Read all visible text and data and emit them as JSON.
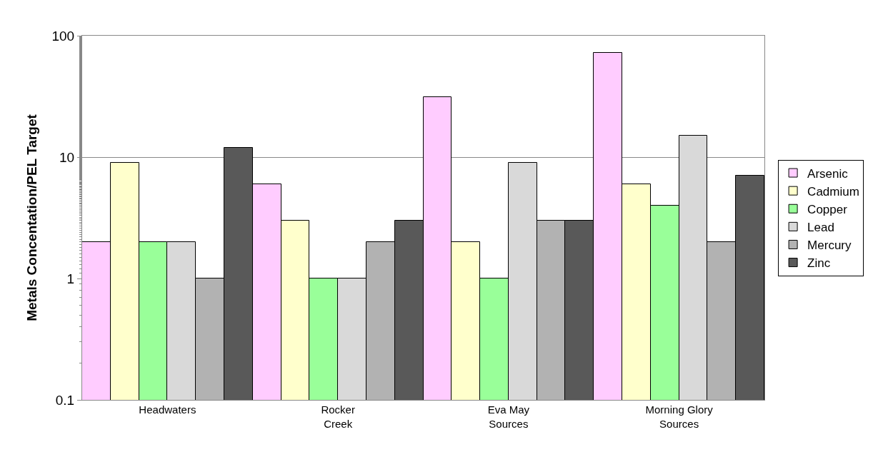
{
  "chart_data": {
    "type": "bar",
    "ylabel": "Metals Concentation/PEL Target",
    "categories": [
      "Headwaters",
      "Rocker\nCreek",
      "Eva May\nSources",
      "Morning Glory\nSources"
    ],
    "series": [
      {
        "name": "Arsenic",
        "color": "#ffccff",
        "values": [
          2,
          6,
          31,
          72
        ]
      },
      {
        "name": "Cadmium",
        "color": "#ffffcc",
        "values": [
          9,
          3,
          2,
          6
        ]
      },
      {
        "name": "Copper",
        "color": "#99ff99",
        "values": [
          2,
          1,
          1,
          4
        ]
      },
      {
        "name": "Lead",
        "color": "#d9d9d9",
        "values": [
          2,
          1,
          9,
          15
        ]
      },
      {
        "name": "Mercury",
        "color": "#b2b2b2",
        "values": [
          1,
          2,
          3,
          2
        ]
      },
      {
        "name": "Zinc",
        "color": "#595959",
        "values": [
          12,
          3,
          3,
          7
        ]
      }
    ],
    "log": "y",
    "ylim": [
      0.1,
      100
    ],
    "yticks": [
      0.1,
      1,
      10,
      100
    ],
    "grid": "y",
    "legend": "right"
  }
}
